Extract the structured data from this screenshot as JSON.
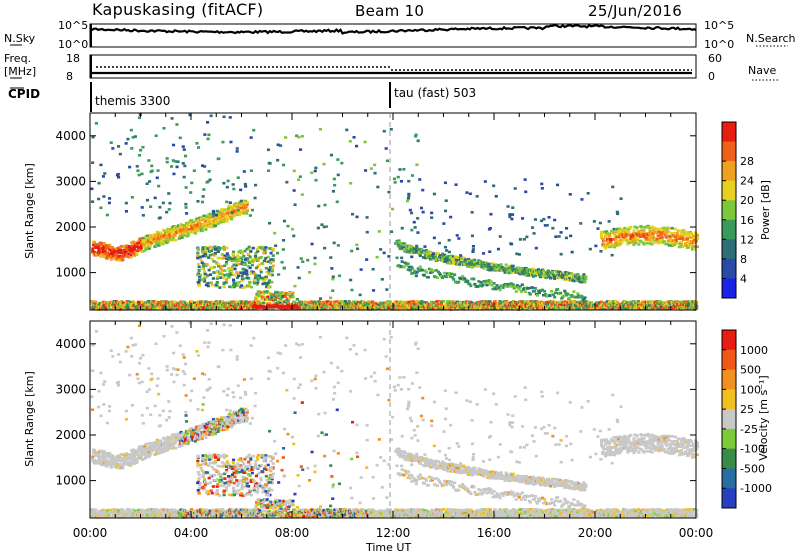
{
  "header": {
    "station": "Kapuskasing (fitACF)",
    "beam": "Beam 10",
    "date": "25/Jun/2016"
  },
  "status_panels": {
    "nsky_label": "N.Sky",
    "nsearch_label": "N.Search",
    "nsky_ticks": [
      "10^5",
      "10^0"
    ],
    "nsearch_ticks": [
      "10^5",
      "10^0"
    ],
    "freq_label_1": "Freq.",
    "freq_label_2": "[MHz]",
    "freq_ticks": [
      "18",
      "8"
    ],
    "nave_label": "Nave",
    "nave_ticks": [
      "60",
      "0"
    ],
    "cpid_label": "CPID",
    "cpid_segments": [
      {
        "name": "themis 3300",
        "start_hour": 0
      },
      {
        "name": "tau (fast) 503",
        "start_hour": 12
      }
    ]
  },
  "chart_data": [
    {
      "type": "heatmap",
      "title": "",
      "xlabel": "Time UT",
      "ylabel": "Slant Range [km]",
      "xlim": [
        0,
        24
      ],
      "ylim": [
        180,
        4500
      ],
      "x_tick_labels": [
        "00:00",
        "04:00",
        "08:00",
        "12:00",
        "16:00",
        "20:00",
        "00:00"
      ],
      "y_ticks": [
        1000,
        2000,
        3000,
        4000
      ],
      "colorbar": {
        "label": "Power [dB]",
        "ticks": [
          "4",
          "8",
          "12",
          "16",
          "20",
          "24",
          "28"
        ],
        "colors": [
          "#1a22e8",
          "#2a4aa8",
          "#2e6e78",
          "#3a9a5a",
          "#7cc83a",
          "#e8d020",
          "#f0a020",
          "#f06018",
          "#e81c10"
        ]
      },
      "features": [
        {
          "name": "backscatter band",
          "hours": [
            0.0,
            6.0
          ],
          "range_km": [
            1500,
            2700
          ],
          "value": "18-28 dB"
        },
        {
          "name": "near-range ground scatter",
          "hours": [
            0.0,
            24.0
          ],
          "range_km": [
            180,
            400
          ],
          "value": "20-30 dB"
        },
        {
          "name": "evening band",
          "hours": [
            12.0,
            19.5
          ],
          "range_km": [
            800,
            1800
          ],
          "value": "8-16 dB"
        },
        {
          "name": "late band",
          "hours": [
            20.0,
            24.0
          ],
          "range_km": [
            1400,
            2000
          ],
          "value": "16-26 dB"
        }
      ]
    },
    {
      "type": "heatmap",
      "title": "",
      "xlabel": "Time UT",
      "ylabel": "Slant Range [km]",
      "xlim": [
        0,
        24
      ],
      "ylim": [
        180,
        4500
      ],
      "x_tick_labels": [
        "00:00",
        "04:00",
        "08:00",
        "12:00",
        "16:00",
        "20:00",
        "00:00"
      ],
      "y_ticks": [
        1000,
        2000,
        3000,
        4000
      ],
      "colorbar": {
        "label": "Velocity [m s⁻¹]",
        "ticks": [
          "1000",
          "500",
          "100",
          "25",
          "-25",
          "-100",
          "-500",
          "-1000"
        ],
        "colors": [
          "#2840c0",
          "#2a6ea0",
          "#3a8a48",
          "#7ccc3a",
          "#c8c8c8",
          "#f0c020",
          "#f09020",
          "#f05818",
          "#e81c10"
        ]
      },
      "features": [
        {
          "name": "ground scatter (grey)",
          "hours": [
            0.0,
            24.0
          ],
          "range_km": [
            180,
            2700
          ],
          "value": "-25 to 25 m/s"
        },
        {
          "name": "flow patches",
          "hours": [
            4.0,
            11.0
          ],
          "range_km": [
            600,
            2000
          ],
          "value": "-500 to 500 m/s"
        }
      ]
    }
  ]
}
